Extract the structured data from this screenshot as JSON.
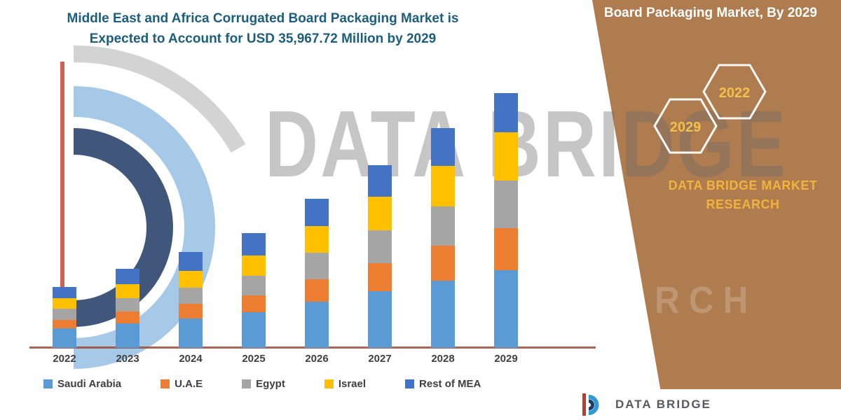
{
  "header": {
    "title_line1": "Middle East and Africa Corrugated Board Packaging Market is",
    "title_line2": "Expected to Account for USD 35,967.72 Million by 2029"
  },
  "side_panel": {
    "title": "Board Packaging Market, By 2029",
    "hexagons": [
      "2029",
      "2022"
    ],
    "brand_line1": "DATA BRIDGE MARKET",
    "brand_line2": "RESEARCH",
    "bg_color": "#AE7C4F",
    "accent_gold": "#F2C14B"
  },
  "watermark": {
    "line1": "DATA BRIDGE",
    "line2": "MARKET RESEARCH"
  },
  "footer_logo": {
    "name": "DATA BRIDGE",
    "icon": "data-bridge-logo-icon"
  },
  "colors": {
    "title_text": "#1B5E7D",
    "panel_brown": "#AE7C4F",
    "gold": "#F2C14B",
    "axis_line": "#9A4A38"
  },
  "chart_data": {
    "type": "bar",
    "stacked": true,
    "title": "Middle East and Africa Corrugated Board Packaging Market is Expected to Account for USD 35,967.72 Million by 2029",
    "unit": "USD Million",
    "categories": [
      "2022",
      "2023",
      "2024",
      "2025",
      "2026",
      "2027",
      "2028",
      "2029"
    ],
    "series": [
      {
        "name": "Saudi Arabia",
        "color": "#5B9BD5",
        "values": [
          2800,
          3500,
          4200,
          5000,
          6500,
          8000,
          9500,
          11000
        ]
      },
      {
        "name": "U.A.E",
        "color": "#ED7D31",
        "values": [
          1200,
          1600,
          2000,
          2400,
          3200,
          4000,
          4900,
          5900
        ]
      },
      {
        "name": "Egypt",
        "color": "#A5A5A5",
        "values": [
          1500,
          1900,
          2300,
          2800,
          3700,
          4600,
          5600,
          6700
        ]
      },
      {
        "name": "Israel",
        "color": "#FFC000",
        "values": [
          1500,
          2000,
          2400,
          2900,
          3800,
          4700,
          5700,
          6800
        ]
      },
      {
        "name": "Rest of MEA",
        "color": "#4472C4",
        "values": [
          1600,
          2200,
          2600,
          3100,
          3800,
          4500,
          5300,
          5567.72
        ]
      }
    ],
    "totals": [
      8600,
      11200,
      13500,
      16200,
      21000,
      25800,
      31000,
      35967.72
    ],
    "xlabel": "",
    "ylabel": "",
    "ylim": [
      0,
      36000
    ],
    "grid": false,
    "legend_position": "bottom"
  }
}
